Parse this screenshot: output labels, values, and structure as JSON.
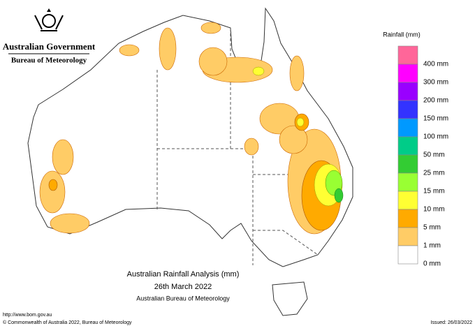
{
  "header": {
    "government": "Australian Government",
    "agency": "Bureau of Meteorology"
  },
  "legend": {
    "title": "Rainfall (mm)",
    "colors": [
      "#ff6699",
      "#ff00ff",
      "#9900ff",
      "#3333ff",
      "#0099ff",
      "#00cc88",
      "#33cc33",
      "#99ff33",
      "#ffff33",
      "#ffaa00",
      "#ffcc66",
      "#ffffff"
    ],
    "labels": [
      "400 mm",
      "300 mm",
      "200 mm",
      "150 mm",
      "100 mm",
      "50 mm",
      "25 mm",
      "15 mm",
      "10 mm",
      "5 mm",
      "1 mm",
      "0 mm"
    ]
  },
  "map": {
    "title": "Australian Rainfall Analysis (mm)",
    "date": "26th March 2022",
    "source": "Australian Bureau of Meteorology"
  },
  "footer": {
    "website": "http://www.bom.gov.au",
    "copyright": "© Commonwealth of Australia 2022, Bureau of Meteorology",
    "issued": "Issued: 26/03/2022"
  }
}
